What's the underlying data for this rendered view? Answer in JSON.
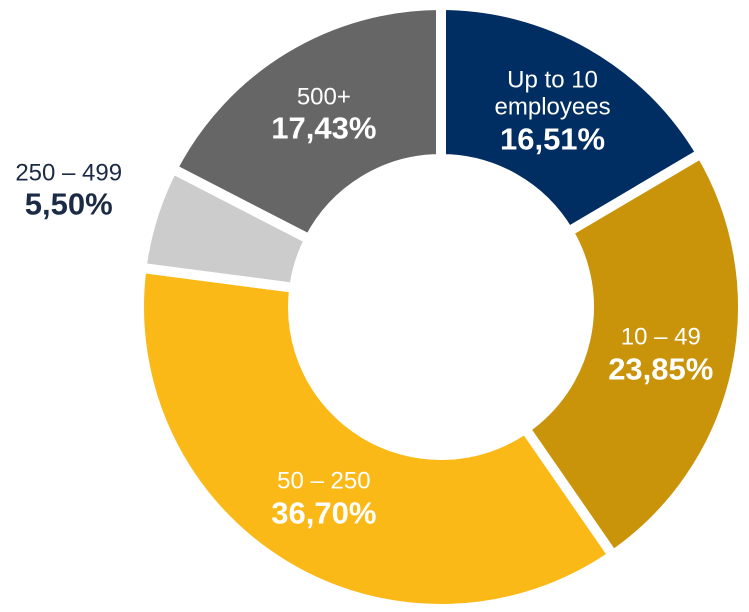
{
  "chart_data": {
    "type": "donut",
    "categories": [
      "Up to 10 employees",
      "10 – 49",
      "50 – 250",
      "250 – 499",
      "500+"
    ],
    "values": [
      16.51,
      23.85,
      36.7,
      5.5,
      17.43
    ],
    "value_labels": [
      "16,51%",
      "23,85%",
      "36,70%",
      "5,50%",
      "17,43%"
    ],
    "colors": [
      "#002d62",
      "#c9930a",
      "#fbb917",
      "#cccccc",
      "#666666"
    ]
  }
}
